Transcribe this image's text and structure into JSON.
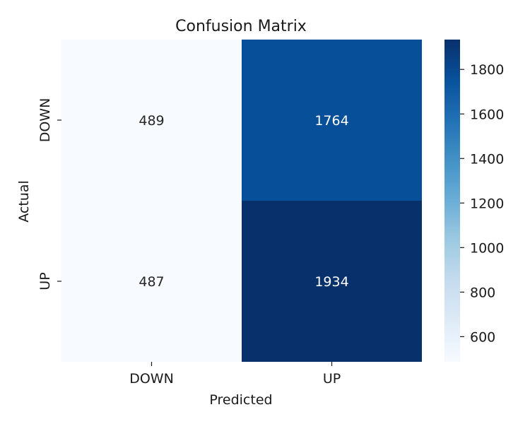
{
  "chart_data": {
    "type": "heatmap",
    "title": "Confusion Matrix",
    "xlabel": "Predicted",
    "ylabel": "Actual",
    "x_categories": [
      "DOWN",
      "UP"
    ],
    "y_categories": [
      "DOWN",
      "UP"
    ],
    "values": [
      [
        489,
        1764
      ],
      [
        487,
        1934
      ]
    ],
    "colormap": "Blues",
    "colorbar": {
      "vmin": 487,
      "vmax": 1934,
      "ticks": [
        "600",
        "800",
        "1000",
        "1200",
        "1400",
        "1600",
        "1800"
      ]
    },
    "colors": {
      "low": "#f7fbff",
      "high": "#08306b"
    }
  }
}
